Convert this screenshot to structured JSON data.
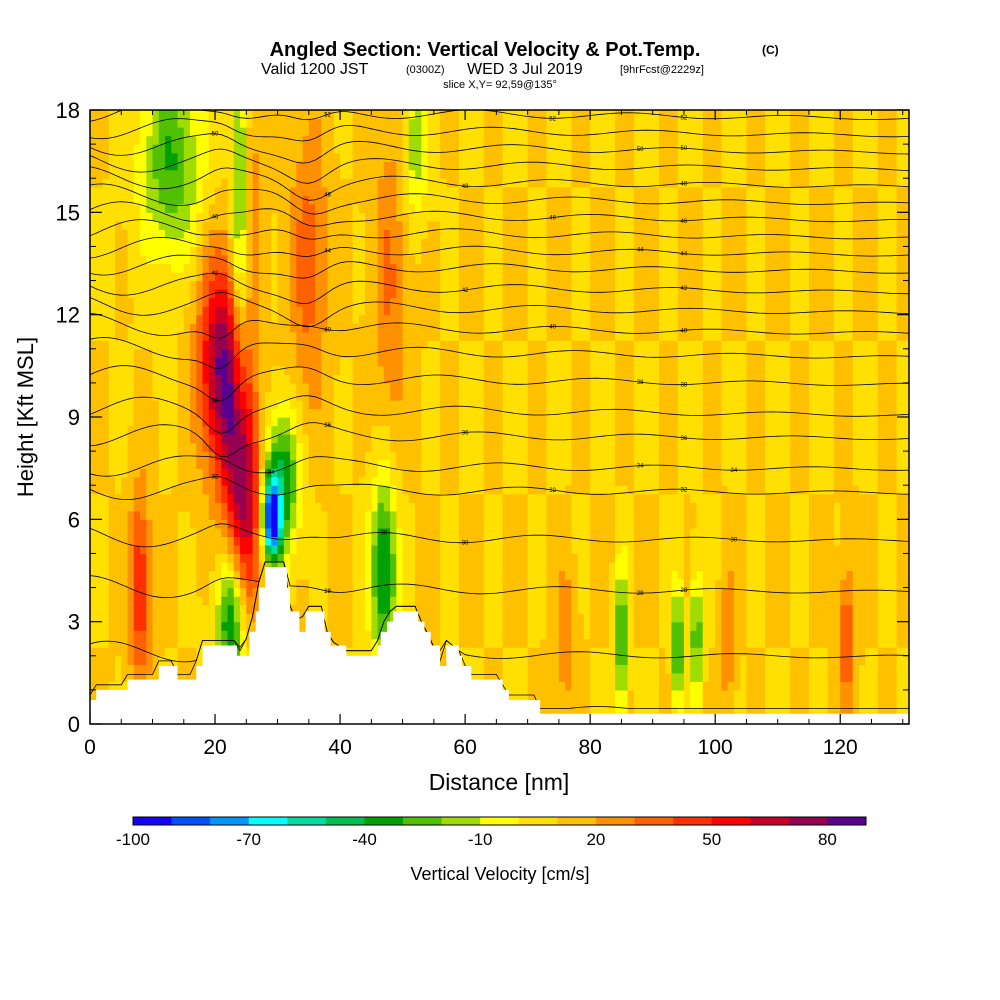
{
  "title": {
    "main": "Angled Section: Vertical Velocity & Pot.Temp.",
    "units": "(C)",
    "valid_prefix": "Valid 1200 JST",
    "valid_utc": "(0300Z)",
    "valid_date": "WED 3 Jul 2019",
    "forecast": "[9hrFcst@2229z]",
    "slice": "slice X,Y= 92,59@135°"
  },
  "chart_data": {
    "type": "heatmap",
    "xlabel": "Distance [nm]",
    "ylabel": "Height [Kft MSL]",
    "xlim": [
      0,
      131
    ],
    "ylim": [
      0,
      18
    ],
    "x_ticks": [
      "0",
      "20",
      "40",
      "60",
      "80",
      "100",
      "120"
    ],
    "x_tick_values": [
      0,
      20,
      40,
      60,
      80,
      100,
      120
    ],
    "y_ticks": [
      "0",
      "3",
      "6",
      "9",
      "12",
      "15",
      "18"
    ],
    "y_tick_values": [
      0,
      3,
      6,
      9,
      12,
      15,
      18
    ],
    "field": "Vertical Velocity",
    "field_units": "cm/s",
    "background_value": 10,
    "velocity_features": [
      {
        "x": 21,
        "y": 10.5,
        "sx": 2.5,
        "sy": 2.2,
        "value": 80
      },
      {
        "x": 24.5,
        "y": 6.8,
        "sx": 2.0,
        "sy": 2.3,
        "value": 78
      },
      {
        "x": 8,
        "y": 4.0,
        "sx": 1.2,
        "sy": 2.0,
        "value": 50
      },
      {
        "x": 35,
        "y": 13.5,
        "sx": 2.2,
        "sy": 3.0,
        "value": 35
      },
      {
        "x": 48,
        "y": 13.0,
        "sx": 2.0,
        "sy": 3.5,
        "value": 30
      },
      {
        "x": 26,
        "y": 16.0,
        "sx": 1.2,
        "sy": 2.5,
        "value": 25
      },
      {
        "x": 29,
        "y": 6.0,
        "sx": 1.0,
        "sy": 0.8,
        "value": -80
      },
      {
        "x": 30.5,
        "y": 7.0,
        "sx": 2.0,
        "sy": 1.5,
        "value": -45
      },
      {
        "x": 22.5,
        "y": 3.0,
        "sx": 1.6,
        "sy": 1.5,
        "value": -45
      },
      {
        "x": 47,
        "y": 4.5,
        "sx": 1.5,
        "sy": 2.0,
        "value": -45
      },
      {
        "x": 13,
        "y": 16.5,
        "sx": 3.5,
        "sy": 2.0,
        "value": -30
      },
      {
        "x": 24,
        "y": 15.0,
        "sx": 1.0,
        "sy": 4.0,
        "value": -25
      },
      {
        "x": 52,
        "y": 17.0,
        "sx": 1.5,
        "sy": 1.5,
        "value": -18
      },
      {
        "x": 85,
        "y": 2.5,
        "sx": 0.6,
        "sy": 1.5,
        "value": -40
      },
      {
        "x": 94,
        "y": 2.3,
        "sx": 0.6,
        "sy": 1.3,
        "value": -40
      },
      {
        "x": 97,
        "y": 2.6,
        "sx": 0.6,
        "sy": 1.3,
        "value": -35
      },
      {
        "x": 76,
        "y": 2.5,
        "sx": 1.2,
        "sy": 1.4,
        "value": 30
      },
      {
        "x": 121,
        "y": 2.5,
        "sx": 1.0,
        "sy": 1.5,
        "value": 40
      },
      {
        "x": 102,
        "y": 2.5,
        "sx": 0.8,
        "sy": 1.5,
        "value": 30
      }
    ],
    "terrain_kft": [
      [
        0,
        0.7
      ],
      [
        1,
        1.0
      ],
      [
        5,
        1.0
      ],
      [
        6,
        1.3
      ],
      [
        10,
        1.3
      ],
      [
        11,
        1.7
      ],
      [
        13,
        1.7
      ],
      [
        14,
        1.3
      ],
      [
        16,
        1.3
      ],
      [
        17,
        1.7
      ],
      [
        18,
        2.3
      ],
      [
        23,
        2.3
      ],
      [
        23.5,
        2.0
      ],
      [
        24.5,
        2.0
      ],
      [
        25.5,
        2.7
      ],
      [
        26.5,
        3.3
      ],
      [
        27,
        4.0
      ],
      [
        28,
        4.6
      ],
      [
        31,
        4.6
      ],
      [
        31.5,
        4.0
      ],
      [
        32,
        3.3
      ],
      [
        33.5,
        2.7
      ],
      [
        34.5,
        3.3
      ],
      [
        37,
        3.3
      ],
      [
        37.5,
        2.7
      ],
      [
        38.5,
        2.3
      ],
      [
        41,
        2.0
      ],
      [
        45,
        2.0
      ],
      [
        46,
        2.3
      ],
      [
        46.5,
        2.7
      ],
      [
        47.5,
        3.0
      ],
      [
        48.5,
        3.3
      ],
      [
        52,
        3.3
      ],
      [
        52.5,
        3.0
      ],
      [
        53.5,
        2.7
      ],
      [
        54.5,
        2.3
      ],
      [
        56,
        1.7
      ],
      [
        57,
        2.3
      ],
      [
        59,
        2.0
      ],
      [
        59.5,
        1.7
      ],
      [
        61,
        1.3
      ],
      [
        65,
        1.3
      ],
      [
        66,
        1.0
      ],
      [
        67,
        0.7
      ],
      [
        71,
        0.7
      ],
      [
        72,
        0.3
      ],
      [
        131,
        0.3
      ]
    ],
    "theta_contours": [
      {
        "base_kft": 0.5,
        "label": ""
      },
      {
        "base_kft": 2.1,
        "label": ""
      },
      {
        "base_kft": 4.0,
        "label": "28"
      },
      {
        "base_kft": 5.5,
        "label": "30"
      },
      {
        "base_kft": 6.9,
        "label": "32"
      },
      {
        "base_kft": 7.6,
        "label": "34"
      },
      {
        "base_kft": 8.5,
        "label": "36"
      },
      {
        "base_kft": 9.3,
        "label": ""
      },
      {
        "base_kft": 10.2,
        "label": "38"
      },
      {
        "base_kft": 11.0,
        "label": ""
      },
      {
        "base_kft": 11.7,
        "label": "40"
      },
      {
        "base_kft": 12.3,
        "label": ""
      },
      {
        "base_kft": 12.9,
        "label": "42"
      },
      {
        "base_kft": 13.5,
        "label": ""
      },
      {
        "base_kft": 14.0,
        "label": "44"
      },
      {
        "base_kft": 14.5,
        "label": ""
      },
      {
        "base_kft": 15.0,
        "label": "46"
      },
      {
        "base_kft": 15.5,
        "label": ""
      },
      {
        "base_kft": 16.0,
        "label": "48"
      },
      {
        "base_kft": 16.5,
        "label": ""
      },
      {
        "base_kft": 17.0,
        "label": "50"
      },
      {
        "base_kft": 17.5,
        "label": ""
      },
      {
        "base_kft": 18.0,
        "label": "52"
      }
    ],
    "colorbar": {
      "label": "Vertical Velocity [cm/s]",
      "tick_labels": [
        "-100",
        "-70",
        "-40",
        "-10",
        "20",
        "50",
        "80"
      ],
      "colors": [
        "#1400ff",
        "#0050ff",
        "#0096ff",
        "#00ffff",
        "#00dca0",
        "#00c050",
        "#00a000",
        "#50c000",
        "#a0dc00",
        "#ffff00",
        "#ffe000",
        "#ffc000",
        "#ff9000",
        "#ff6000",
        "#ff3000",
        "#ff0000",
        "#c80028",
        "#960050",
        "#5a0090"
      ]
    }
  }
}
